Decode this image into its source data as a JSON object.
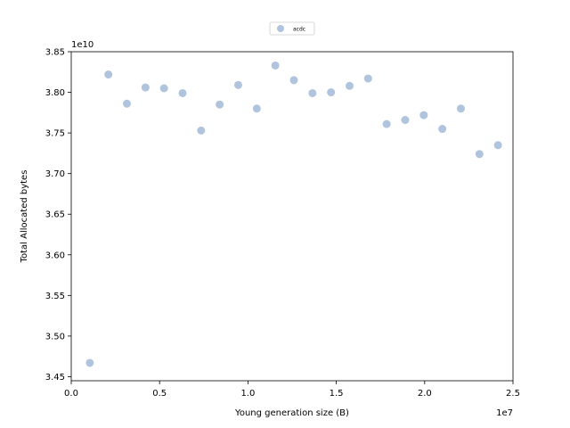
{
  "chart_data": {
    "type": "scatter",
    "title": "",
    "xlabel": "Young generation size (B)",
    "ylabel": "Total Allocated bytes",
    "x_offset_label": "1e7",
    "y_offset_label": "1e10",
    "xlim": [
      0,
      25000000
    ],
    "ylim": [
      34450000000,
      38500000000
    ],
    "x_ticks": [
      0,
      5000000,
      10000000,
      15000000,
      20000000,
      25000000
    ],
    "x_tick_labels": [
      "0.0",
      "0.5",
      "1.0",
      "1.5",
      "2.0",
      "2.5"
    ],
    "y_ticks": [
      34500000000,
      35000000000,
      35500000000,
      36000000000,
      36500000000,
      37000000000,
      37500000000,
      38000000000,
      38500000000
    ],
    "y_tick_labels": [
      "3.45",
      "3.50",
      "3.55",
      "3.60",
      "3.65",
      "3.70",
      "3.75",
      "3.80",
      "3.85"
    ],
    "grid": false,
    "legend_position": "upper-center",
    "series": [
      {
        "name": "acdc",
        "color": "#b0c4de",
        "x": [
          1050000,
          2100000,
          3150000,
          4200000,
          5250000,
          6300000,
          7350000,
          8400000,
          9450000,
          10500000,
          11550000,
          12600000,
          13650000,
          14700000,
          15750000,
          16800000,
          17850000,
          18900000,
          19950000,
          21000000,
          22050000,
          23100000,
          24150000
        ],
        "y": [
          34670000000,
          38220000000,
          37860000000,
          38060000000,
          38050000000,
          37990000000,
          37530000000,
          37850000000,
          38090000000,
          37800000000,
          38330000000,
          38150000000,
          37990000000,
          38000000000,
          38080000000,
          38170000000,
          37610000000,
          37660000000,
          37720000000,
          37550000000,
          37800000000,
          37240000000,
          37350000000
        ]
      }
    ]
  }
}
